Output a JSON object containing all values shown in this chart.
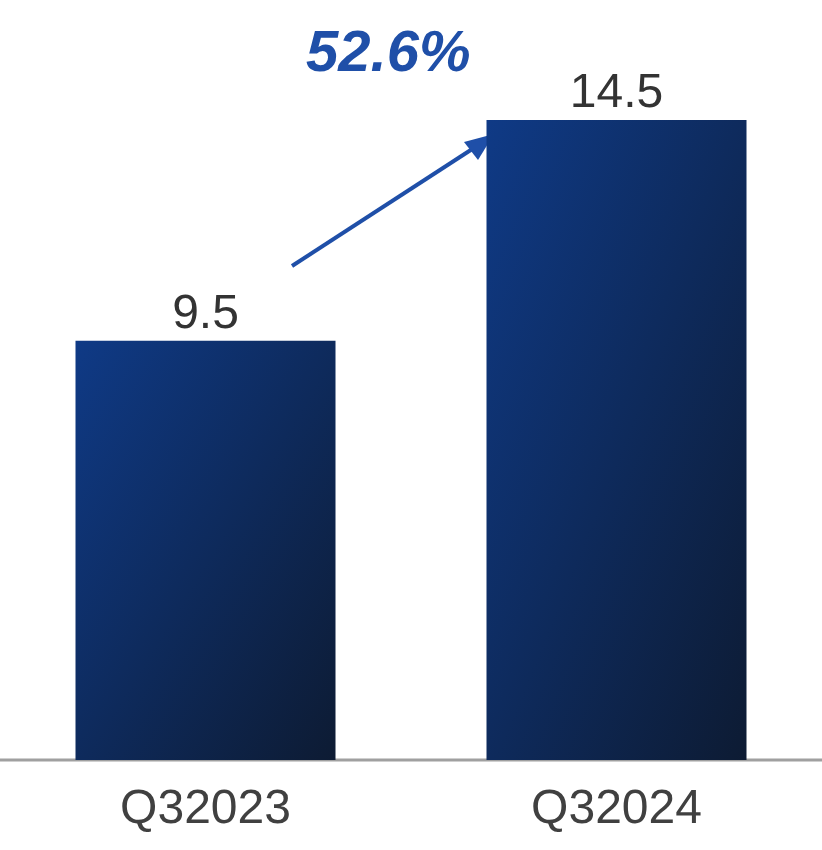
{
  "chart_data": {
    "type": "bar",
    "categories": [
      "Q32023",
      "Q32024"
    ],
    "values": [
      9.5,
      14.5
    ],
    "color": "#0f3a86",
    "data_labels": true,
    "annotations": [
      "52.6%"
    ]
  }
}
